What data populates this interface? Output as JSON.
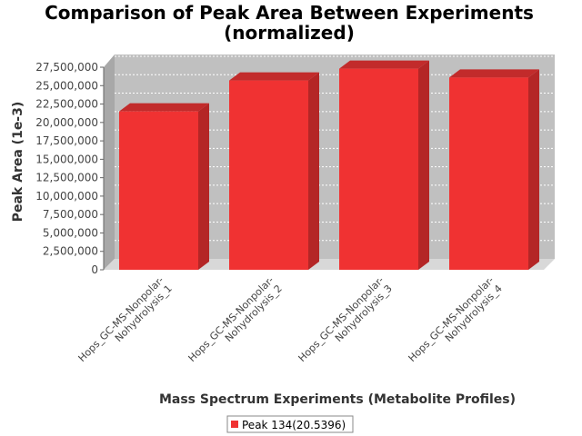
{
  "chart_data": {
    "type": "bar",
    "title_line1": "Comparison of Peak Area Between Experiments",
    "title_line2": "(normalized)",
    "xlabel": "Mass Spectrum Experiments (Metabolite Profiles)",
    "ylabel": "Peak Area (1e-3)",
    "ylim": [
      0,
      27500000
    ],
    "yticks": [
      0,
      2500000,
      5000000,
      7500000,
      10000000,
      12500000,
      15000000,
      17500000,
      20000000,
      22500000,
      25000000,
      27500000
    ],
    "ytick_labels": [
      "0",
      "2,500,000",
      "5,000,000",
      "7,500,000",
      "10,000,000",
      "12,500,000",
      "15,000,000",
      "17,500,000",
      "20,000,000",
      "22,500,000",
      "25,000,000",
      "27,500,000"
    ],
    "categories": [
      {
        "line1": "Hops_GC-MS-Nonpolar-",
        "line2": "Nohydrolysis_1"
      },
      {
        "line1": "Hops_GC-MS-Nonpolar-",
        "line2": "Nohydrolysis_2"
      },
      {
        "line1": "Hops_GC-MS-Nonpolar-",
        "line2": "Nohydrolysis_3"
      },
      {
        "line1": "Hops_GC-MS-Nonpolar-",
        "line2": "Nohydrolysis_4"
      }
    ],
    "series": [
      {
        "name": "Peak 134(20.5396)",
        "values": [
          21500000,
          25700000,
          27300000,
          26100000
        ]
      }
    ],
    "grid": true,
    "legend_position": "bottom-center",
    "colors": {
      "bar_front": "#f03232",
      "bar_side": "#b42626",
      "bar_top": "#c22b2b",
      "plot_bg": "#c0c0c0",
      "floor": "#d8d8d8",
      "grid": "#ffffff"
    }
  }
}
